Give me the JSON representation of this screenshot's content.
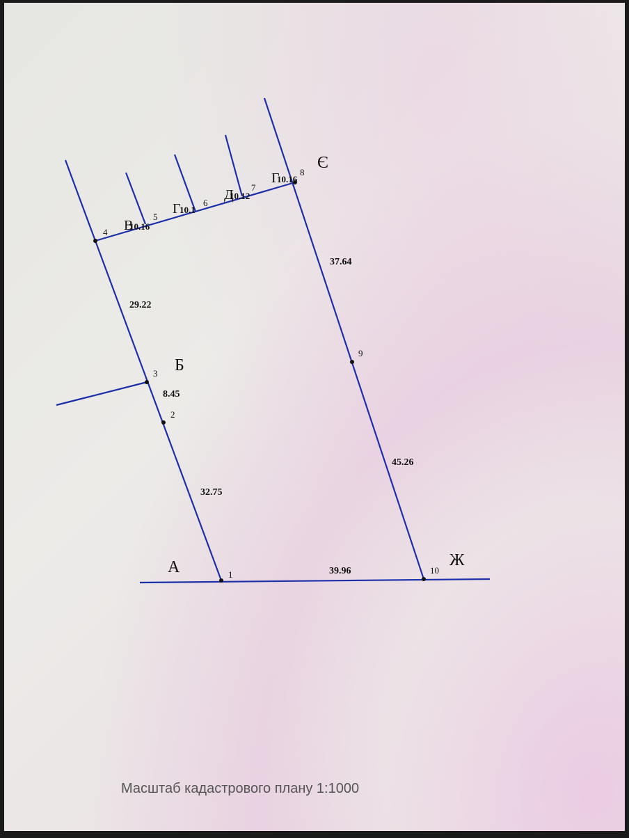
{
  "line_color": "#1d2fa8",
  "points": [
    "1",
    "2",
    "3",
    "4",
    "5",
    "6",
    "7",
    "8",
    "9",
    "10"
  ],
  "corners": {
    "A": "А",
    "B": "Б",
    "E": "Є",
    "Zh": "Ж"
  },
  "neighbors": [
    {
      "letter": "В",
      "code": "10.16"
    },
    {
      "letter": "Г",
      "code": "10.1"
    },
    {
      "letter": "Д",
      "code": "10.12"
    },
    {
      "letter": "Г",
      "code": "10.16"
    }
  ],
  "distances": {
    "d4_3": "29.22",
    "d3_2": "8.45",
    "d2_1": "32.75",
    "d1_10": "39.96",
    "d10_9": "45.26",
    "d9_8": "37.64"
  },
  "caption": "Масштаб кадастрового плану 1:1000"
}
